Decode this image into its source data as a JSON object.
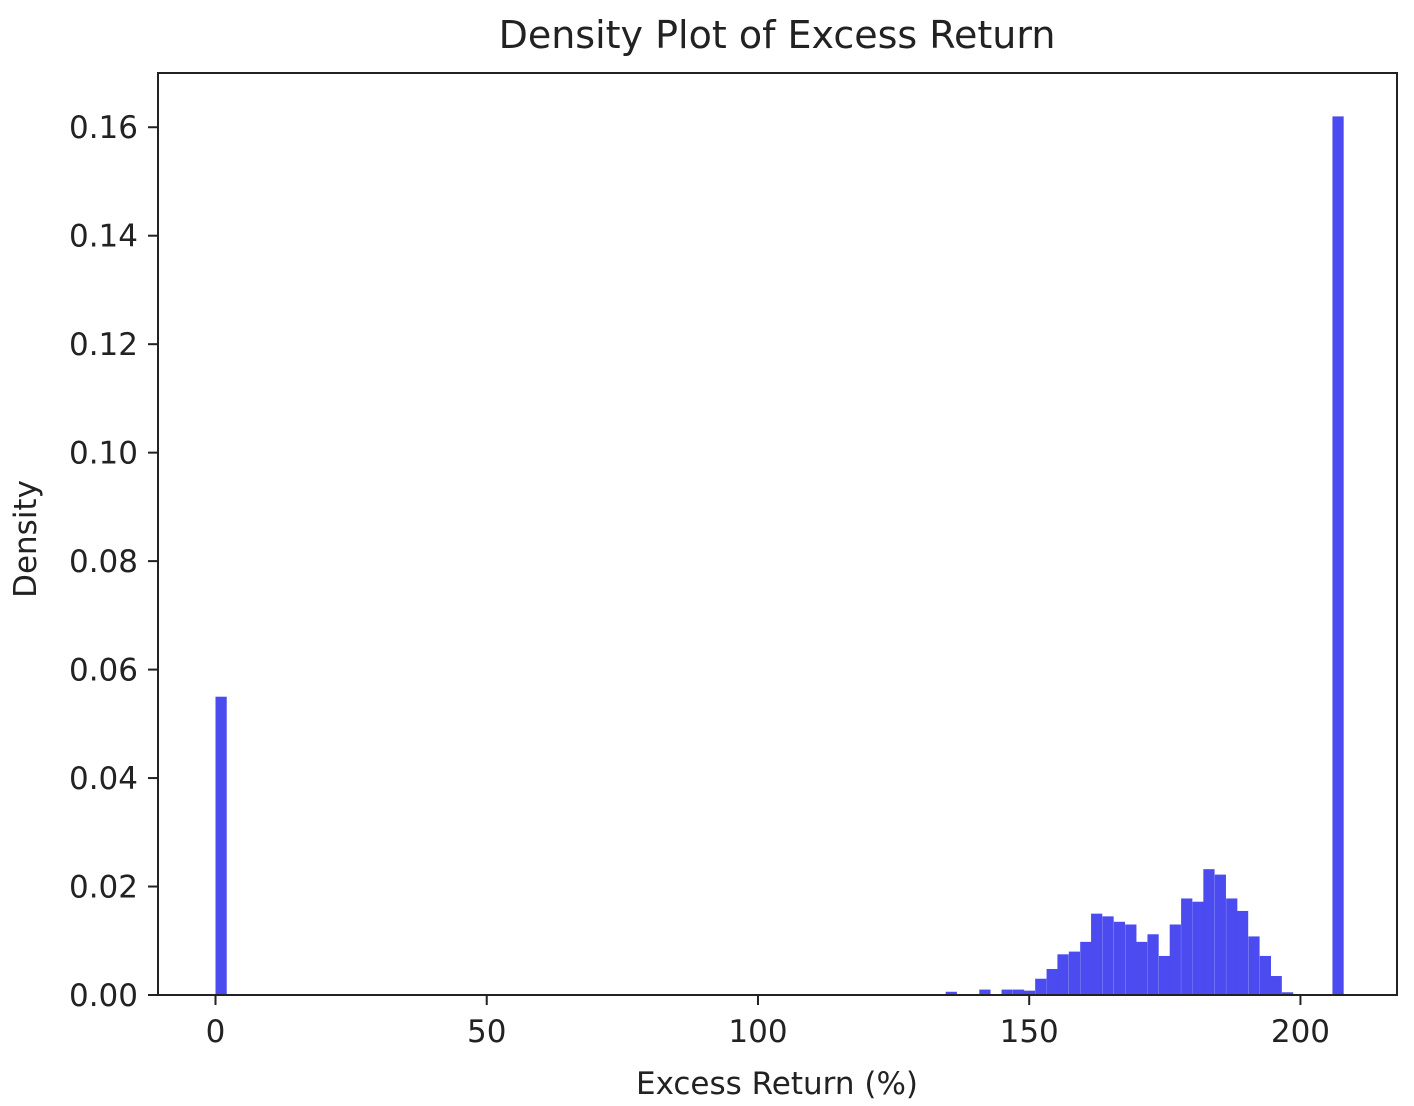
{
  "chart_data": {
    "type": "bar",
    "title": "Density Plot of Excess Return",
    "xlabel": "Excess Return (%)",
    "ylabel": "Density",
    "xlim": [
      -10.6,
      217.8
    ],
    "ylim": [
      0,
      0.17
    ],
    "x_ticks": [
      0,
      50,
      100,
      150,
      200
    ],
    "y_ticks": [
      0.0,
      0.02,
      0.04,
      0.06,
      0.08,
      0.1,
      0.12,
      0.14,
      0.16
    ],
    "bin_width": 2.07,
    "bar_color": "#4b4bf0",
    "grid": false,
    "legend": "none",
    "bins": [
      {
        "x": 0.0,
        "density": 0.055
      },
      {
        "x": 134.6,
        "density": 0.0006
      },
      {
        "x": 140.8,
        "density": 0.001
      },
      {
        "x": 144.9,
        "density": 0.001
      },
      {
        "x": 147.0,
        "density": 0.001
      },
      {
        "x": 149.0,
        "density": 0.0008
      },
      {
        "x": 151.1,
        "density": 0.003
      },
      {
        "x": 153.2,
        "density": 0.0048
      },
      {
        "x": 155.2,
        "density": 0.0075
      },
      {
        "x": 157.3,
        "density": 0.008
      },
      {
        "x": 159.4,
        "density": 0.0098
      },
      {
        "x": 161.4,
        "density": 0.015
      },
      {
        "x": 163.5,
        "density": 0.0145
      },
      {
        "x": 165.6,
        "density": 0.0135
      },
      {
        "x": 167.7,
        "density": 0.013
      },
      {
        "x": 169.7,
        "density": 0.0098
      },
      {
        "x": 171.8,
        "density": 0.0112
      },
      {
        "x": 173.9,
        "density": 0.0072
      },
      {
        "x": 175.9,
        "density": 0.013
      },
      {
        "x": 178.0,
        "density": 0.0178
      },
      {
        "x": 180.1,
        "density": 0.0172
      },
      {
        "x": 182.1,
        "density": 0.0232
      },
      {
        "x": 184.2,
        "density": 0.0222
      },
      {
        "x": 186.3,
        "density": 0.0178
      },
      {
        "x": 188.3,
        "density": 0.0155
      },
      {
        "x": 190.4,
        "density": 0.0108
      },
      {
        "x": 192.5,
        "density": 0.0072
      },
      {
        "x": 194.5,
        "density": 0.0035
      },
      {
        "x": 196.6,
        "density": 0.0005
      },
      {
        "x": 205.9,
        "density": 0.162
      }
    ]
  }
}
